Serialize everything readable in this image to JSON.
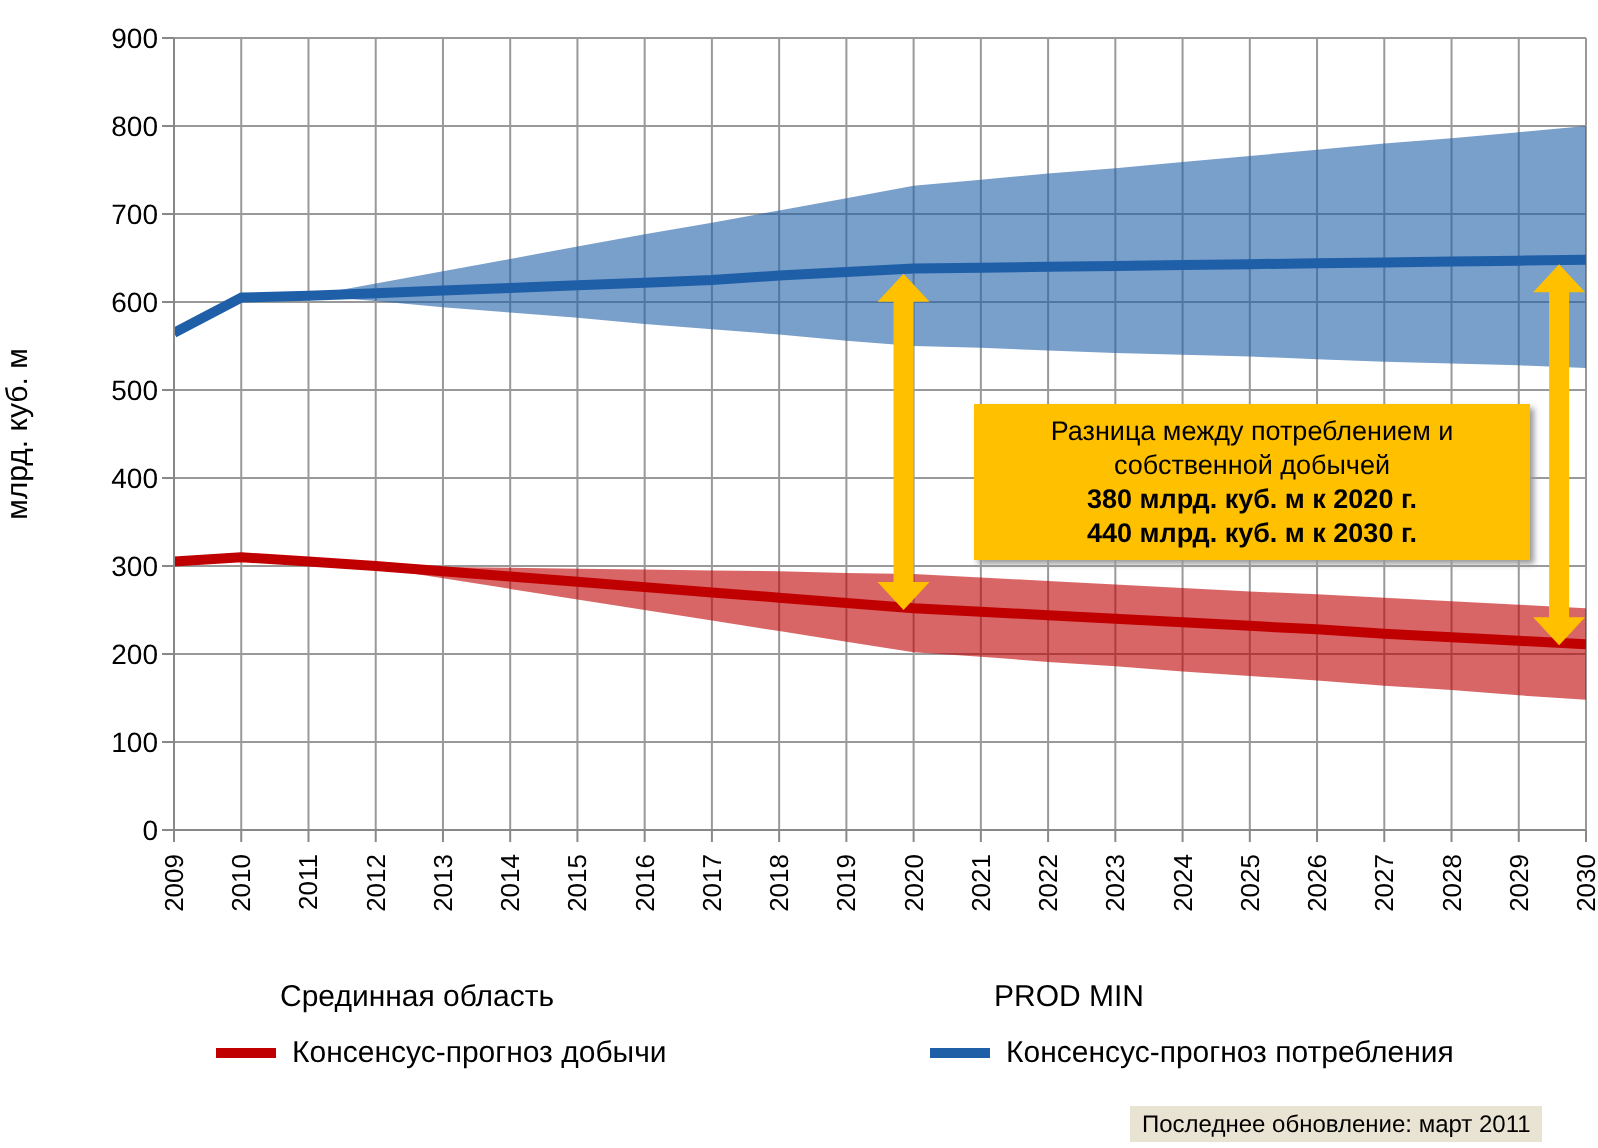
{
  "chart_data": {
    "type": "line",
    "ylabel": "млрд. куб. м",
    "x": [
      2009,
      2010,
      2011,
      2012,
      2013,
      2014,
      2015,
      2016,
      2017,
      2018,
      2019,
      2020,
      2021,
      2022,
      2023,
      2024,
      2025,
      2026,
      2027,
      2028,
      2029,
      2030
    ],
    "series": [
      {
        "name": "Консенсус-прогноз добычи",
        "color": "#c00000",
        "values": [
          305,
          310,
          305,
          300,
          294,
          288,
          282,
          276,
          270,
          264,
          258,
          252,
          248,
          244,
          240,
          236,
          232,
          228,
          223,
          219,
          215,
          211
        ],
        "lower": [
          null,
          null,
          305,
          298,
          286,
          274,
          262,
          250,
          238,
          226,
          214,
          202,
          197,
          191,
          186,
          180,
          175,
          170,
          164,
          159,
          153,
          148
        ],
        "upper": [
          null,
          null,
          305,
          300,
          299,
          298,
          297,
          296,
          295,
          294,
          292,
          291,
          287,
          283,
          279,
          275,
          271,
          268,
          264,
          260,
          256,
          252
        ]
      },
      {
        "name": "Консенсус-прогноз потребления",
        "color": "#1f5fa8",
        "values": [
          565,
          605,
          607,
          610,
          613,
          616,
          619,
          622,
          625,
          630,
          634,
          638,
          639,
          640,
          641,
          642,
          643,
          644,
          645,
          646,
          647,
          648
        ],
        "lower": [
          null,
          null,
          607,
          601,
          594,
          588,
          582,
          575,
          569,
          563,
          556,
          550,
          548,
          545,
          542,
          540,
          538,
          535,
          532,
          530,
          528,
          525
        ],
        "upper": [
          null,
          null,
          607,
          621,
          635,
          649,
          663,
          677,
          690,
          704,
          718,
          732,
          739,
          746,
          752,
          759,
          766,
          773,
          780,
          786,
          793,
          800
        ]
      }
    ],
    "xlim": [
      2009,
      2030
    ],
    "xticks": [
      2009,
      2010,
      2011,
      2012,
      2013,
      2014,
      2015,
      2016,
      2017,
      2018,
      2019,
      2020,
      2021,
      2022,
      2023,
      2024,
      2025,
      2026,
      2027,
      2028,
      2029,
      2030
    ],
    "ylim": [
      0,
      900
    ],
    "yticks": [
      0,
      100,
      200,
      300,
      400,
      500,
      600,
      700,
      800,
      900
    ],
    "grid": true,
    "legend": "bottom",
    "marker": "none",
    "line_style": "solid",
    "annotations": [
      "Разница между потреблением и собственной добычей\n380 млрд. куб. м к 2020 г.\n440 млрд. куб. м к 2030 г.",
      "Срединная область",
      "PROD MIN",
      "Последнее обновление: март 2011"
    ]
  }
}
